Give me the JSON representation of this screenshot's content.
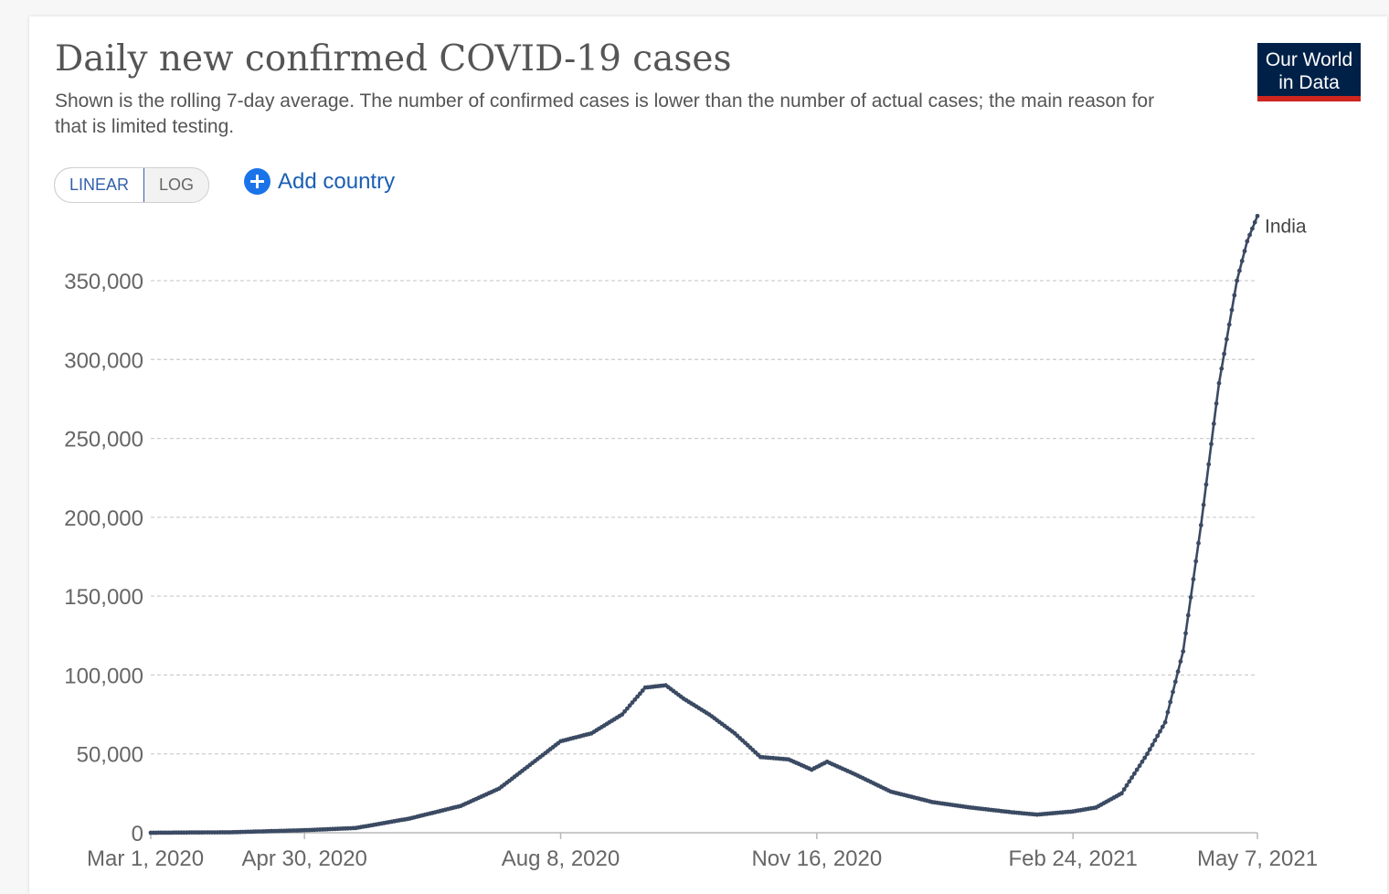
{
  "header": {
    "title": "Daily new confirmed COVID-19 cases",
    "subtitle": "Shown is the rolling 7-day average. The number of confirmed cases is lower than the number of actual cases; the main reason for that is limited testing."
  },
  "logo": {
    "line1": "Our World",
    "line2": "in Data",
    "bg": "#002147",
    "accent": "#ce261e"
  },
  "controls": {
    "linear_label": "LINEAR",
    "log_label": "LOG",
    "add_country_label": "Add country",
    "add_icon": "plus-circle-icon",
    "active_scale": "linear"
  },
  "chart_data": {
    "type": "line",
    "title": "Daily new confirmed COVID-19 cases",
    "xlabel": "",
    "ylabel": "",
    "x_start": "2020-03-01",
    "x_end": "2021-05-07",
    "xlim": [
      "2020-03-01",
      "2021-05-07"
    ],
    "ylim": [
      0,
      390000
    ],
    "y_ticks": [
      0,
      50000,
      100000,
      150000,
      200000,
      250000,
      300000,
      350000
    ],
    "y_tick_labels": [
      "0",
      "50,000",
      "100,000",
      "150,000",
      "200,000",
      "250,000",
      "300,000",
      "350,000"
    ],
    "x_ticks": [
      "2020-03-01",
      "2020-04-30",
      "2020-08-08",
      "2020-11-16",
      "2021-02-24",
      "2021-05-07"
    ],
    "x_tick_labels": [
      "Mar 1, 2020",
      "Apr 30, 2020",
      "Aug 8, 2020",
      "Nov 16, 2020",
      "Feb 24, 2021",
      "May 7, 2021"
    ],
    "grid": "horizontal dashed",
    "series": [
      {
        "name": "India",
        "color": "#3b4a63",
        "points": [
          [
            "2020-03-01",
            0
          ],
          [
            "2020-04-01",
            300
          ],
          [
            "2020-04-30",
            1600
          ],
          [
            "2020-05-20",
            3000
          ],
          [
            "2020-06-10",
            9000
          ],
          [
            "2020-06-30",
            17000
          ],
          [
            "2020-07-15",
            28000
          ],
          [
            "2020-07-31",
            48000
          ],
          [
            "2020-08-08",
            58000
          ],
          [
            "2020-08-20",
            63000
          ],
          [
            "2020-09-01",
            75000
          ],
          [
            "2020-09-10",
            92000
          ],
          [
            "2020-09-18",
            93500
          ],
          [
            "2020-09-25",
            85000
          ],
          [
            "2020-10-05",
            75000
          ],
          [
            "2020-10-15",
            63000
          ],
          [
            "2020-10-25",
            48000
          ],
          [
            "2020-11-05",
            46500
          ],
          [
            "2020-11-14",
            40000
          ],
          [
            "2020-11-20",
            45000
          ],
          [
            "2020-12-01",
            37000
          ],
          [
            "2020-12-15",
            26000
          ],
          [
            "2020-12-31",
            19500
          ],
          [
            "2021-01-15",
            16000
          ],
          [
            "2021-01-31",
            13000
          ],
          [
            "2021-02-10",
            11500
          ],
          [
            "2021-02-24",
            13500
          ],
          [
            "2021-03-05",
            16000
          ],
          [
            "2021-03-15",
            25000
          ],
          [
            "2021-03-25",
            50000
          ],
          [
            "2021-04-01",
            70000
          ],
          [
            "2021-04-08",
            115000
          ],
          [
            "2021-04-15",
            195000
          ],
          [
            "2021-04-22",
            285000
          ],
          [
            "2021-04-29",
            350000
          ],
          [
            "2021-05-03",
            375000
          ],
          [
            "2021-05-07",
            391000
          ]
        ]
      }
    ]
  }
}
